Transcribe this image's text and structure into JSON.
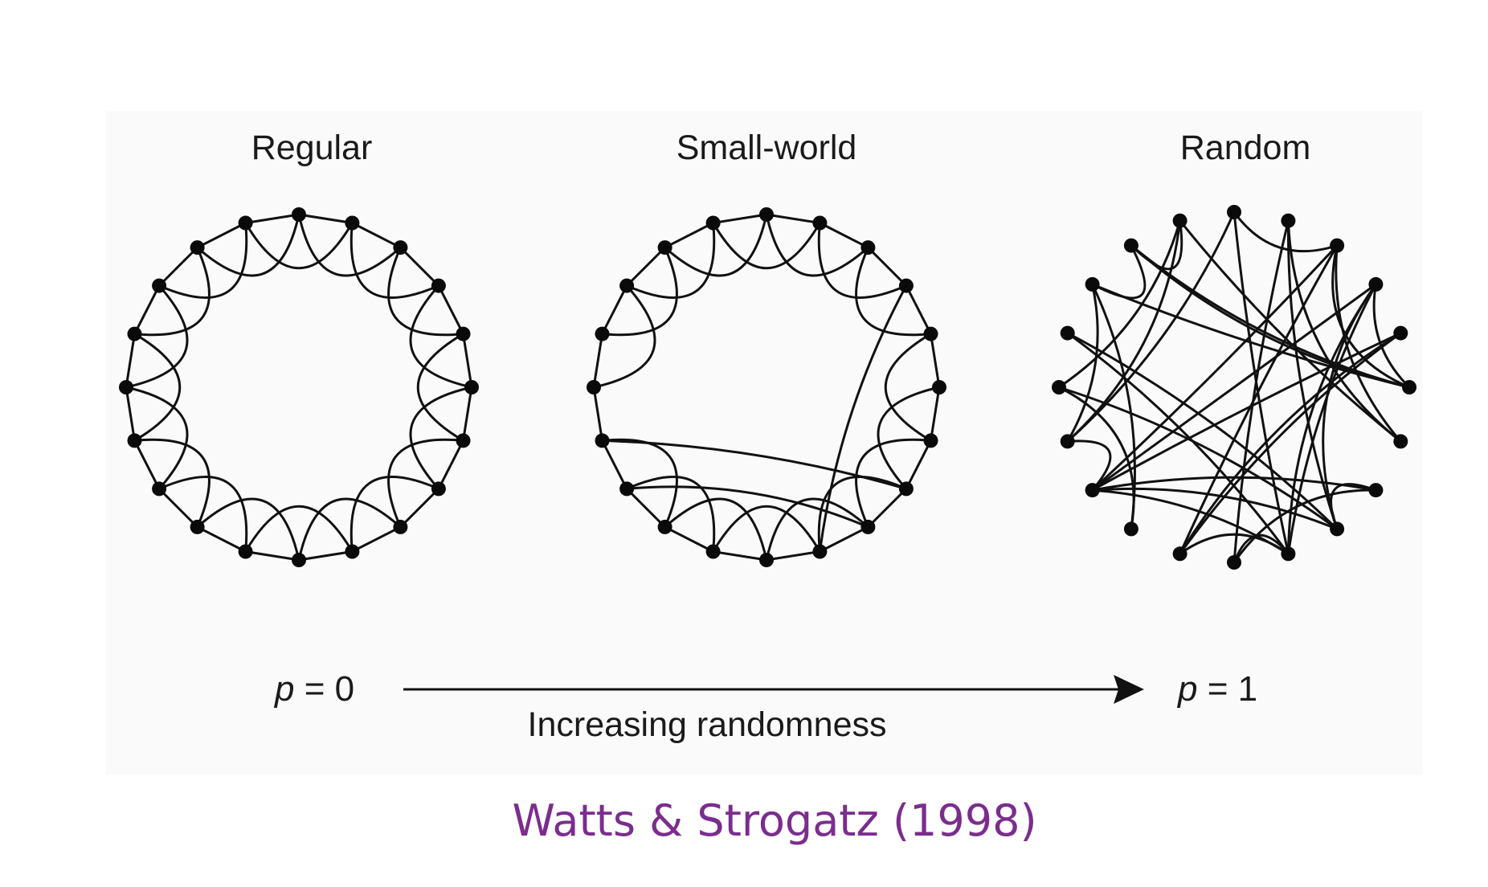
{
  "panels": [
    {
      "title": "Regular",
      "kind": "regular"
    },
    {
      "title": "Small-world",
      "kind": "small-world"
    },
    {
      "title": "Random",
      "kind": "random"
    }
  ],
  "graph": {
    "node_count": 20,
    "neighbors_each_side": 2
  },
  "axis": {
    "start": {
      "var": "p",
      "eq": " = ",
      "value": "0"
    },
    "end": {
      "var": "p",
      "eq": " = ",
      "value": "1"
    },
    "label": "Increasing randomness"
  },
  "citation": "Watts & Strogatz (1998)",
  "colors": {
    "citation": "#7b2d8e",
    "ink": "#111111",
    "panel_bg": "#fafafa"
  }
}
